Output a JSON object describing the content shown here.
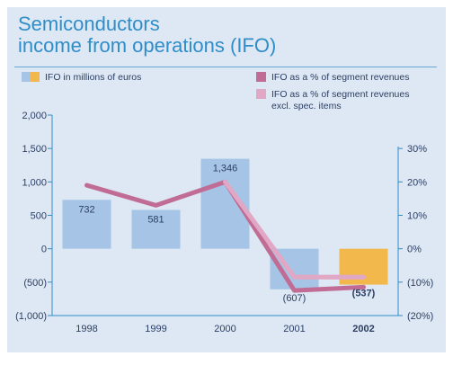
{
  "title_line1": "Semiconductors",
  "title_line2": "income from operations (IFO)",
  "colors": {
    "panel_bg": "#dde8f4",
    "title": "#2f8dc8",
    "bar": "#a5c4e6",
    "bar_highlight": "#f2b84b",
    "line_ifo_pct": "#c06c95",
    "line_ifo_pct_excl": "#e0a8c4",
    "axis": "#2f8dc8",
    "text": "#2c3e63"
  },
  "chart_data": {
    "type": "bar",
    "categories": [
      "1998",
      "1999",
      "2000",
      "2001",
      "2002"
    ],
    "highlight_category": "2002",
    "legend": {
      "bars": "IFO in millions of euros",
      "line1": "IFO as a % of segment revenues",
      "line2_a": "IFO as a % of segment revenues",
      "line2_b": "excl. spec. items"
    },
    "series": [
      {
        "name": "IFO in millions of euros",
        "type": "bar",
        "axis": "left",
        "values": [
          732,
          581,
          1346,
          -607,
          -537
        ],
        "labels": [
          "732",
          "581",
          "1,346",
          "(607)",
          "(537)"
        ]
      },
      {
        "name": "IFO as a % of segment revenues",
        "type": "line",
        "axis": "right",
        "values": [
          19,
          13,
          20,
          -12.5,
          -11.5
        ]
      },
      {
        "name": "IFO as a % of segment revenues excl. spec. items",
        "type": "line",
        "axis": "right",
        "values": [
          null,
          null,
          20,
          -8.5,
          -8.5
        ]
      }
    ],
    "left_axis": {
      "ylim": [
        -1000,
        2000
      ],
      "ticks": [
        2000,
        1500,
        1000,
        500,
        0,
        -500,
        -1000
      ],
      "tick_labels": [
        "2,000",
        "1,500",
        "1,000",
        "500",
        "0",
        "(500)",
        "(1,000)"
      ]
    },
    "right_axis": {
      "ylim": [
        -20,
        30
      ],
      "ticks": [
        30,
        20,
        10,
        0,
        -10,
        -20
      ],
      "tick_labels": [
        "30%",
        "20%",
        "10%",
        "0%",
        "(10%)",
        "(20%)"
      ]
    },
    "grid": false
  }
}
